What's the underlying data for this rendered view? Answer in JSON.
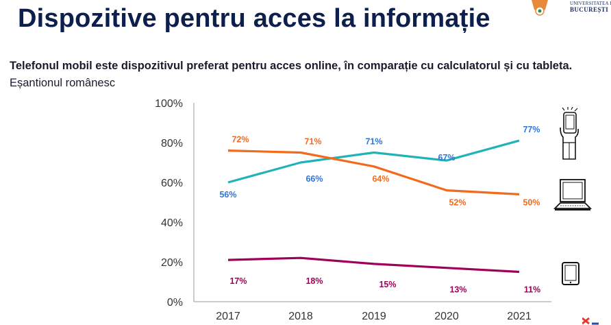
{
  "slide": {
    "title": "Dispozitive pentru acces la informație",
    "subtitle_bold": "Telefonul mobil este dispozitivul preferat pentru acces online, în comparație cu calculatorul și cu tableta.",
    "subtitle_rest": " Eșantionul românesc",
    "logo_line1": "UNIVERSITATEA DIN",
    "logo_line2": "BUCUREȘTI"
  },
  "chart_data": {
    "type": "line",
    "categories": [
      "2017",
      "2018",
      "2019",
      "2020",
      "2021"
    ],
    "ylim": [
      0,
      100
    ],
    "y_ticks": [
      "0%",
      "20%",
      "40%",
      "60%",
      "80%",
      "100%"
    ],
    "series": [
      {
        "icon": "smartphone-icon",
        "color": "#1fb3b8",
        "label_color": "#2e75d6",
        "values": [
          60,
          70,
          75,
          71,
          81
        ],
        "labels": [
          "56%",
          "66%",
          "71%",
          "67%",
          "77%"
        ]
      },
      {
        "icon": "laptop-icon",
        "color": "#f26b1d",
        "label_color": "#f26b1d",
        "values": [
          76,
          75,
          68,
          56,
          54
        ],
        "labels": [
          "72%",
          "71%",
          "64%",
          "52%",
          "50%"
        ]
      },
      {
        "icon": "tablet-icon",
        "color": "#a0005a",
        "label_color": "#a0005a",
        "values": [
          21,
          22,
          19,
          17,
          15
        ],
        "labels": [
          "17%",
          "18%",
          "15%",
          "13%",
          "11%"
        ]
      }
    ]
  }
}
